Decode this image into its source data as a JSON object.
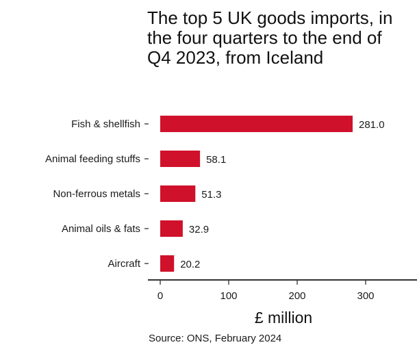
{
  "chart_data": {
    "type": "bar",
    "orientation": "horizontal",
    "title": "The top 5 UK goods imports, in the four quarters to the end of Q4 2023, from Iceland",
    "xlabel": "£ million",
    "ylabel": "",
    "categories": [
      "Fish & shellfish",
      "Animal feeding stuffs",
      "Non-ferrous metals",
      "Animal oils & fats",
      "Aircraft"
    ],
    "values": [
      281.0,
      58.1,
      51.3,
      32.9,
      20.2
    ],
    "data_labels": [
      "281.0",
      "58.1",
      "51.3",
      "32.9",
      "20.2"
    ],
    "xlim": [
      0,
      370
    ],
    "xticks": [
      0,
      100,
      200,
      300
    ],
    "xtick_labels": [
      "0",
      "100",
      "200",
      "300"
    ],
    "grid": false,
    "bar_color": "#d0112b",
    "source": "Source: ONS, February 2024"
  }
}
